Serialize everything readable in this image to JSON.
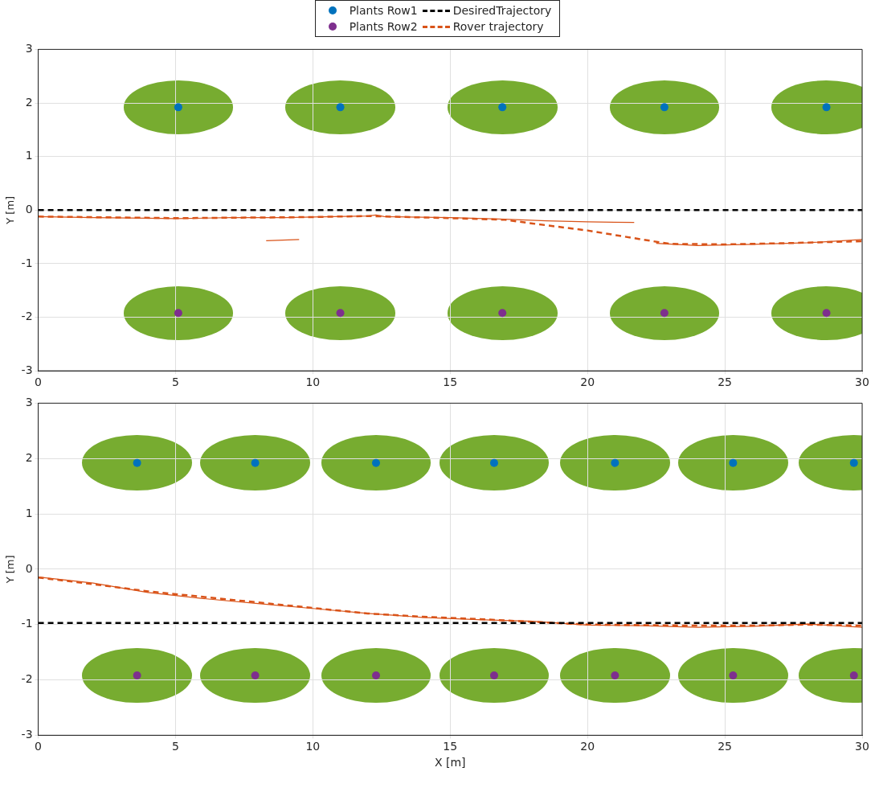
{
  "chart_data": [
    {
      "type": "scatter",
      "ylabel": "Y [m]",
      "xlim": [
        0,
        30
      ],
      "ylim": [
        -3,
        3
      ],
      "xticks": [
        0,
        5,
        10,
        15,
        20,
        25,
        30
      ],
      "yticks": [
        -3,
        -2,
        -1,
        0,
        1,
        2,
        3
      ],
      "grid": true,
      "legend": "top",
      "tick_labels": "xy",
      "series": [
        {
          "name": "Plants Row1",
          "type": "scatter",
          "marker": "circle",
          "color": "#0072bd",
          "x": [
            5.1,
            11.0,
            16.9,
            22.8,
            28.7
          ],
          "values": [
            1.92,
            1.92,
            1.92,
            1.92,
            1.92
          ]
        },
        {
          "name": "Plants Row2",
          "type": "scatter",
          "marker": "circle",
          "color": "#7e2f8e",
          "x": [
            5.1,
            11.0,
            16.9,
            22.8,
            28.7
          ],
          "values": [
            -1.92,
            -1.92,
            -1.92,
            -1.92,
            -1.92
          ]
        },
        {
          "name": "DesiredTrajectory",
          "type": "line",
          "line_style": "dashed",
          "marker": "none",
          "color": "#000000",
          "x": [
            0,
            30
          ],
          "values": [
            0,
            0
          ]
        },
        {
          "name": "Rover trajectory",
          "type": "line",
          "line_style": "dashed",
          "marker": "none",
          "color": "#d95319",
          "x": [
            0,
            5,
            10,
            12,
            15,
            17,
            18,
            20,
            22,
            23,
            25,
            27,
            30
          ],
          "values": [
            -0.12,
            -0.15,
            -0.13,
            -0.11,
            -0.15,
            -0.18,
            -0.25,
            -0.38,
            -0.55,
            -0.63,
            -0.64,
            -0.62,
            -0.58
          ]
        },
        {
          "type": "line",
          "line_style": "solid",
          "marker": "none",
          "color": "#d95319",
          "x": [
            0,
            2,
            4,
            5,
            7,
            9,
            10,
            12,
            12.3,
            12.6,
            15,
            17,
            18.5,
            20,
            21.7,
            null,
            8.3,
            9.5,
            null,
            22.5,
            24,
            26,
            28,
            30
          ],
          "values": [
            -0.12,
            -0.14,
            -0.15,
            -0.16,
            -0.14,
            -0.14,
            -0.13,
            -0.11,
            -0.09,
            -0.12,
            -0.14,
            -0.17,
            -0.2,
            -0.22,
            -0.23,
            null,
            -0.57,
            -0.55,
            null,
            -0.62,
            -0.66,
            -0.64,
            -0.61,
            -0.55
          ]
        }
      ]
    },
    {
      "type": "scatter",
      "xlabel": "X [m]",
      "ylabel": "Y [m]",
      "xlim": [
        0,
        30
      ],
      "ylim": [
        -3,
        3
      ],
      "xticks": [
        0,
        5,
        10,
        15,
        20,
        25,
        30
      ],
      "yticks": [
        -3,
        -2,
        -1,
        0,
        1,
        2,
        3
      ],
      "grid": true,
      "series": [
        {
          "type": "scatter",
          "marker": "circle",
          "color": "#0072bd",
          "x": [
            3.6,
            7.9,
            12.3,
            16.6,
            21.0,
            25.3,
            29.7
          ],
          "values": [
            1.92,
            1.92,
            1.92,
            1.92,
            1.92,
            1.92,
            1.92
          ]
        },
        {
          "type": "scatter",
          "marker": "circle",
          "color": "#7e2f8e",
          "x": [
            3.6,
            7.9,
            12.3,
            16.6,
            21.0,
            25.3,
            29.7
          ],
          "values": [
            -1.92,
            -1.92,
            -1.92,
            -1.92,
            -1.92,
            -1.92,
            -1.92
          ]
        },
        {
          "type": "line",
          "line_style": "dashed",
          "marker": "none",
          "color": "#000000",
          "x": [
            0,
            30
          ],
          "values": [
            -0.97,
            -0.97
          ]
        },
        {
          "type": "line",
          "line_style": "dashed",
          "marker": "none",
          "color": "#d95319",
          "x": [
            0,
            2,
            4,
            6,
            8,
            10,
            12,
            14,
            16,
            18,
            20,
            22,
            24,
            26,
            28,
            30
          ],
          "values": [
            -0.15,
            -0.27,
            -0.4,
            -0.5,
            -0.6,
            -0.7,
            -0.8,
            -0.86,
            -0.9,
            -0.95,
            -1.0,
            -1.01,
            -1.02,
            -1.02,
            -1.0,
            -1.02
          ]
        },
        {
          "type": "line",
          "line_style": "solid",
          "marker": "none",
          "color": "#d95319",
          "x": [
            0,
            2,
            4,
            6,
            8,
            10,
            12,
            14,
            16,
            18,
            20,
            22,
            24,
            26,
            28,
            30
          ],
          "values": [
            -0.14,
            -0.25,
            -0.42,
            -0.53,
            -0.62,
            -0.71,
            -0.8,
            -0.87,
            -0.91,
            -0.94,
            -1.01,
            -1.02,
            -1.05,
            -1.03,
            -0.99,
            -1.05
          ]
        }
      ]
    }
  ]
}
